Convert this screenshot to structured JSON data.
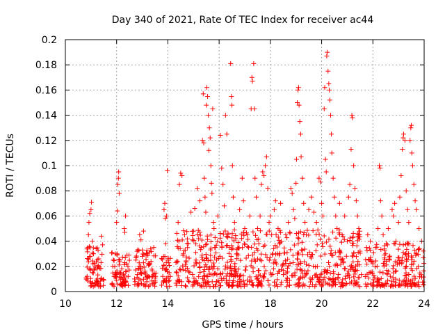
{
  "chart_data": {
    "type": "scatter",
    "title": "Day 340 of 2021, Rate Of TEC Index for receiver ac44",
    "xlabel": "GPS time / hours",
    "ylabel": "ROTI / TECUs",
    "xlim": [
      10,
      24
    ],
    "ylim": [
      0,
      0.2
    ],
    "x_ticks": [
      "10",
      "12",
      "14",
      "16",
      "18",
      "20",
      "22",
      "24"
    ],
    "y_ticks": [
      "0",
      "0.02",
      "0.04",
      "0.06",
      "0.08",
      "0.1",
      "0.12",
      "0.14",
      "0.16",
      "0.18",
      "0.2"
    ],
    "grid": true,
    "marker": "+",
    "series": [
      {
        "name": "ROTI",
        "color": "#ff0000",
        "points": [
          [
            10.85,
            0.012
          ],
          [
            10.88,
            0.035
          ],
          [
            10.9,
            0.045
          ],
          [
            10.92,
            0.055
          ],
          [
            10.95,
            0.062
          ],
          [
            10.97,
            0.028
          ],
          [
            11.0,
            0.065
          ],
          [
            11.02,
            0.071
          ],
          [
            11.05,
            0.04
          ],
          [
            11.08,
            0.022
          ],
          [
            11.1,
            0.03
          ],
          [
            11.15,
            0.018
          ],
          [
            11.2,
            0.034
          ],
          [
            11.25,
            0.01
          ],
          [
            11.3,
            0.026
          ],
          [
            11.4,
            0.044
          ],
          [
            11.5,
            0.009
          ],
          [
            11.85,
            0.02
          ],
          [
            11.9,
            0.012
          ],
          [
            11.95,
            0.03
          ],
          [
            12.0,
            0.055
          ],
          [
            12.03,
            0.064
          ],
          [
            12.05,
            0.085
          ],
          [
            12.07,
            0.09
          ],
          [
            12.08,
            0.095
          ],
          [
            12.1,
            0.078
          ],
          [
            12.12,
            0.025
          ],
          [
            12.15,
            0.015
          ],
          [
            12.2,
            0.018
          ],
          [
            12.25,
            0.01
          ],
          [
            12.3,
            0.05
          ],
          [
            12.32,
            0.047
          ],
          [
            12.35,
            0.06
          ],
          [
            12.4,
            0.022
          ],
          [
            12.45,
            0.012
          ],
          [
            12.7,
            0.01
          ],
          [
            12.75,
            0.025
          ],
          [
            12.8,
            0.032
          ],
          [
            12.85,
            0.018
          ],
          [
            12.9,
            0.045
          ],
          [
            12.95,
            0.041
          ],
          [
            13.0,
            0.028
          ],
          [
            13.05,
            0.048
          ],
          [
            13.1,
            0.015
          ],
          [
            13.15,
            0.011
          ],
          [
            13.2,
            0.03
          ],
          [
            13.3,
            0.022
          ],
          [
            13.4,
            0.012
          ],
          [
            13.45,
            0.035
          ],
          [
            13.5,
            0.009
          ],
          [
            13.8,
            0.012
          ],
          [
            13.85,
            0.065
          ],
          [
            13.88,
            0.07
          ],
          [
            13.9,
            0.058
          ],
          [
            13.92,
            0.038
          ],
          [
            13.95,
            0.06
          ],
          [
            13.98,
            0.096
          ],
          [
            14.0,
            0.025
          ],
          [
            14.05,
            0.015
          ],
          [
            14.1,
            0.012
          ],
          [
            14.35,
            0.015
          ],
          [
            14.4,
            0.055
          ],
          [
            14.45,
            0.085
          ],
          [
            14.5,
            0.094
          ],
          [
            14.55,
            0.092
          ],
          [
            14.6,
            0.03
          ],
          [
            14.65,
            0.045
          ],
          [
            14.7,
            0.02
          ],
          [
            14.8,
            0.038
          ],
          [
            14.9,
            0.063
          ],
          [
            15.0,
            0.048
          ],
          [
            15.05,
            0.066
          ],
          [
            15.1,
            0.025
          ],
          [
            15.15,
            0.082
          ],
          [
            15.2,
            0.042
          ],
          [
            15.25,
            0.072
          ],
          [
            15.3,
            0.035
          ],
          [
            15.35,
            0.12
          ],
          [
            15.38,
            0.157
          ],
          [
            15.4,
            0.118
          ],
          [
            15.42,
            0.09
          ],
          [
            15.45,
            0.075
          ],
          [
            15.48,
            0.063
          ],
          [
            15.5,
            0.148
          ],
          [
            15.52,
            0.162
          ],
          [
            15.55,
            0.155
          ],
          [
            15.58,
            0.14
          ],
          [
            15.6,
            0.112
          ],
          [
            15.62,
            0.13
          ],
          [
            15.65,
            0.122
          ],
          [
            15.68,
            0.1
          ],
          [
            15.7,
            0.086
          ],
          [
            15.72,
            0.078
          ],
          [
            15.75,
            0.145
          ],
          [
            15.78,
            0.055
          ],
          [
            15.8,
            0.05
          ],
          [
            15.85,
            0.035
          ],
          [
            15.9,
            0.025
          ],
          [
            15.95,
            0.06
          ],
          [
            16.05,
            0.124
          ],
          [
            16.1,
            0.098
          ],
          [
            16.15,
            0.085
          ],
          [
            16.2,
            0.068
          ],
          [
            16.25,
            0.14
          ],
          [
            16.3,
            0.125
          ],
          [
            16.35,
            0.045
          ],
          [
            16.4,
            0.035
          ],
          [
            16.45,
            0.181
          ],
          [
            16.48,
            0.155
          ],
          [
            16.5,
            0.148
          ],
          [
            16.52,
            0.1
          ],
          [
            16.55,
            0.075
          ],
          [
            16.6,
            0.055
          ],
          [
            16.65,
            0.042
          ],
          [
            16.7,
            0.03
          ],
          [
            16.8,
            0.065
          ],
          [
            16.9,
            0.09
          ],
          [
            16.95,
            0.072
          ],
          [
            17.0,
            0.05
          ],
          [
            17.1,
            0.045
          ],
          [
            17.15,
            0.035
          ],
          [
            17.2,
            0.06
          ],
          [
            17.25,
            0.145
          ],
          [
            17.28,
            0.17
          ],
          [
            17.3,
            0.167
          ],
          [
            17.35,
            0.181
          ],
          [
            17.38,
            0.145
          ],
          [
            17.4,
            0.09
          ],
          [
            17.45,
            0.075
          ],
          [
            17.5,
            0.05
          ],
          [
            17.55,
            0.038
          ],
          [
            17.6,
            0.06
          ],
          [
            17.65,
            0.085
          ],
          [
            17.7,
            0.095
          ],
          [
            17.75,
            0.092
          ],
          [
            17.8,
            0.1
          ],
          [
            17.85,
            0.107
          ],
          [
            17.9,
            0.082
          ],
          [
            17.95,
            0.055
          ],
          [
            18.0,
            0.06
          ],
          [
            18.05,
            0.045
          ],
          [
            18.1,
            0.03
          ],
          [
            18.15,
            0.065
          ],
          [
            18.2,
            0.072
          ],
          [
            18.3,
            0.05
          ],
          [
            18.35,
            0.038
          ],
          [
            18.4,
            0.07
          ],
          [
            18.5,
            0.022
          ],
          [
            18.6,
            0.045
          ],
          [
            18.7,
            0.055
          ],
          [
            18.8,
            0.082
          ],
          [
            18.85,
            0.078
          ],
          [
            18.9,
            0.065
          ],
          [
            18.95,
            0.058
          ],
          [
            19.0,
            0.086
          ],
          [
            19.02,
            0.105
          ],
          [
            19.05,
            0.15
          ],
          [
            19.08,
            0.16
          ],
          [
            19.1,
            0.162
          ],
          [
            19.12,
            0.148
          ],
          [
            19.15,
            0.135
          ],
          [
            19.18,
            0.125
          ],
          [
            19.2,
            0.107
          ],
          [
            19.25,
            0.09
          ],
          [
            19.3,
            0.07
          ],
          [
            19.35,
            0.055
          ],
          [
            19.4,
            0.045
          ],
          [
            19.5,
            0.065
          ],
          [
            19.6,
            0.075
          ],
          [
            19.7,
            0.063
          ],
          [
            19.8,
            0.055
          ],
          [
            19.9,
            0.09
          ],
          [
            19.95,
            0.087
          ],
          [
            20.0,
            0.07
          ],
          [
            20.05,
            0.06
          ],
          [
            20.1,
            0.145
          ],
          [
            20.12,
            0.162
          ],
          [
            20.15,
            0.105
          ],
          [
            20.18,
            0.095
          ],
          [
            20.2,
            0.187
          ],
          [
            20.22,
            0.19
          ],
          [
            20.25,
            0.175
          ],
          [
            20.28,
            0.165
          ],
          [
            20.3,
            0.16
          ],
          [
            20.32,
            0.152
          ],
          [
            20.35,
            0.14
          ],
          [
            20.38,
            0.125
          ],
          [
            20.4,
            0.11
          ],
          [
            20.45,
            0.09
          ],
          [
            20.5,
            0.075
          ],
          [
            20.55,
            0.06
          ],
          [
            20.6,
            0.05
          ],
          [
            20.7,
            0.07
          ],
          [
            20.8,
            0.045
          ],
          [
            20.9,
            0.06
          ],
          [
            21.0,
            0.04
          ],
          [
            21.05,
            0.075
          ],
          [
            21.1,
            0.085
          ],
          [
            21.15,
            0.113
          ],
          [
            21.18,
            0.14
          ],
          [
            21.2,
            0.138
          ],
          [
            21.25,
            0.1
          ],
          [
            21.3,
            0.082
          ],
          [
            21.35,
            0.072
          ],
          [
            21.4,
            0.06
          ],
          [
            21.45,
            0.05
          ],
          [
            21.75,
            0.035
          ],
          [
            21.8,
            0.045
          ],
          [
            21.85,
            0.025
          ],
          [
            21.9,
            0.04
          ],
          [
            22.0,
            0.022
          ],
          [
            22.1,
            0.035
          ],
          [
            22.2,
            0.05
          ],
          [
            22.25,
            0.1
          ],
          [
            22.28,
            0.098
          ],
          [
            22.3,
            0.072
          ],
          [
            22.35,
            0.06
          ],
          [
            22.4,
            0.045
          ],
          [
            22.5,
            0.03
          ],
          [
            22.6,
            0.05
          ],
          [
            22.75,
            0.065
          ],
          [
            22.8,
            0.06
          ],
          [
            22.85,
            0.07
          ],
          [
            22.9,
            0.04
          ],
          [
            23.0,
            0.055
          ],
          [
            23.05,
            0.075
          ],
          [
            23.1,
            0.092
          ],
          [
            23.15,
            0.113
          ],
          [
            23.18,
            0.122
          ],
          [
            23.2,
            0.125
          ],
          [
            23.25,
            0.12
          ],
          [
            23.3,
            0.08
          ],
          [
            23.35,
            0.065
          ],
          [
            23.4,
            0.055
          ],
          [
            23.45,
            0.12
          ],
          [
            23.48,
            0.13
          ],
          [
            23.5,
            0.132
          ],
          [
            23.52,
            0.11
          ],
          [
            23.55,
            0.1
          ],
          [
            23.6,
            0.085
          ],
          [
            23.65,
            0.072
          ],
          [
            23.7,
            0.065
          ],
          [
            23.8,
            0.05
          ],
          [
            23.9,
            0.04
          ]
        ]
      }
    ]
  }
}
